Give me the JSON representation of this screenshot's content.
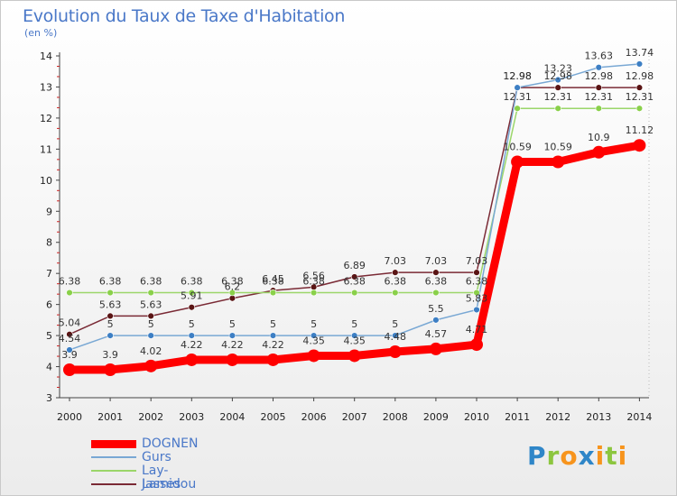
{
  "title": "Evolution du Taux de Taxe d'Habitation",
  "unit": "(en %)",
  "brand": {
    "p": "P",
    "r": "r",
    "o": "o",
    "x": "x",
    "i": "i",
    "t": "t",
    "i2": "i"
  },
  "chart_data": {
    "type": "line",
    "title": "Evolution du Taux de Taxe d'Habitation",
    "ylabel": "(en %)",
    "xlabel": "",
    "categories": [
      "2000",
      "2001",
      "2002",
      "2003",
      "2004",
      "2005",
      "2006",
      "2007",
      "2008",
      "2009",
      "2010",
      "2011",
      "2012",
      "2013",
      "2014"
    ],
    "ylim": [
      3,
      14
    ],
    "yticks": [
      "3",
      "4",
      "5",
      "6",
      "7",
      "8",
      "9",
      "10",
      "11",
      "12",
      "13",
      "14"
    ],
    "grid": false,
    "legend_position": "bottom-left",
    "series": [
      {
        "name": "Jasses",
        "color": "#7a2a35",
        "dot": "#5a1414",
        "values": [
          5.04,
          5.63,
          5.63,
          5.91,
          6.2,
          6.45,
          6.56,
          6.89,
          7.03,
          7.03,
          7.03,
          12.98,
          12.98,
          12.98,
          12.98
        ],
        "labels": [
          "5.04",
          "5.63",
          "5.63",
          "5.91",
          "6.2",
          "6.45",
          "6.56",
          "6.89",
          "7.03",
          "7.03",
          "7.03",
          "12.98",
          "12.98",
          "12.98",
          "12.98"
        ]
      },
      {
        "name": "Lay-Lamidou",
        "color": "#9bd66a",
        "dot": "#8ad04a",
        "values": [
          6.38,
          6.38,
          6.38,
          6.38,
          6.38,
          6.38,
          6.38,
          6.38,
          6.38,
          6.38,
          6.38,
          12.31,
          12.31,
          12.31,
          12.31
        ],
        "labels": [
          "6.38",
          "6.38",
          "6.38",
          "6.38",
          "6.38",
          "6.38",
          "6.38",
          "6.38",
          "6.38",
          "6.38",
          "6.38",
          "12.31",
          "12.31",
          "12.31",
          "12.31"
        ]
      },
      {
        "name": "Gurs",
        "color": "#79a8d4",
        "dot": "#3d7fc4",
        "values": [
          4.54,
          5,
          5,
          5,
          5,
          5,
          5,
          5,
          5,
          5.5,
          5.83,
          12.98,
          13.23,
          13.63,
          13.74
        ],
        "labels": [
          "4.54",
          "5",
          "5",
          "5",
          "5",
          "5",
          "5",
          "5",
          "5",
          "5.5",
          "5.83",
          "12.98",
          "13.23",
          "13.63",
          "13.74"
        ]
      },
      {
        "name": "DOGNEN",
        "color": "#ff0000",
        "dot": "#ff0000",
        "values": [
          3.9,
          3.9,
          4.02,
          4.22,
          4.22,
          4.22,
          4.35,
          4.35,
          4.48,
          4.57,
          4.71,
          10.59,
          10.59,
          10.9,
          11.12
        ],
        "labels": [
          "3.9",
          "3.9",
          "4.02",
          "4.22",
          "4.22",
          "4.22",
          "4.35",
          "4.35",
          "4.48",
          "4.57",
          "4.71",
          "10.59",
          "10.59",
          "10.9",
          "11.12"
        ]
      }
    ],
    "legend_order": [
      "DOGNEN",
      "Gurs",
      "Lay-Lamidou",
      "Jasses"
    ]
  }
}
